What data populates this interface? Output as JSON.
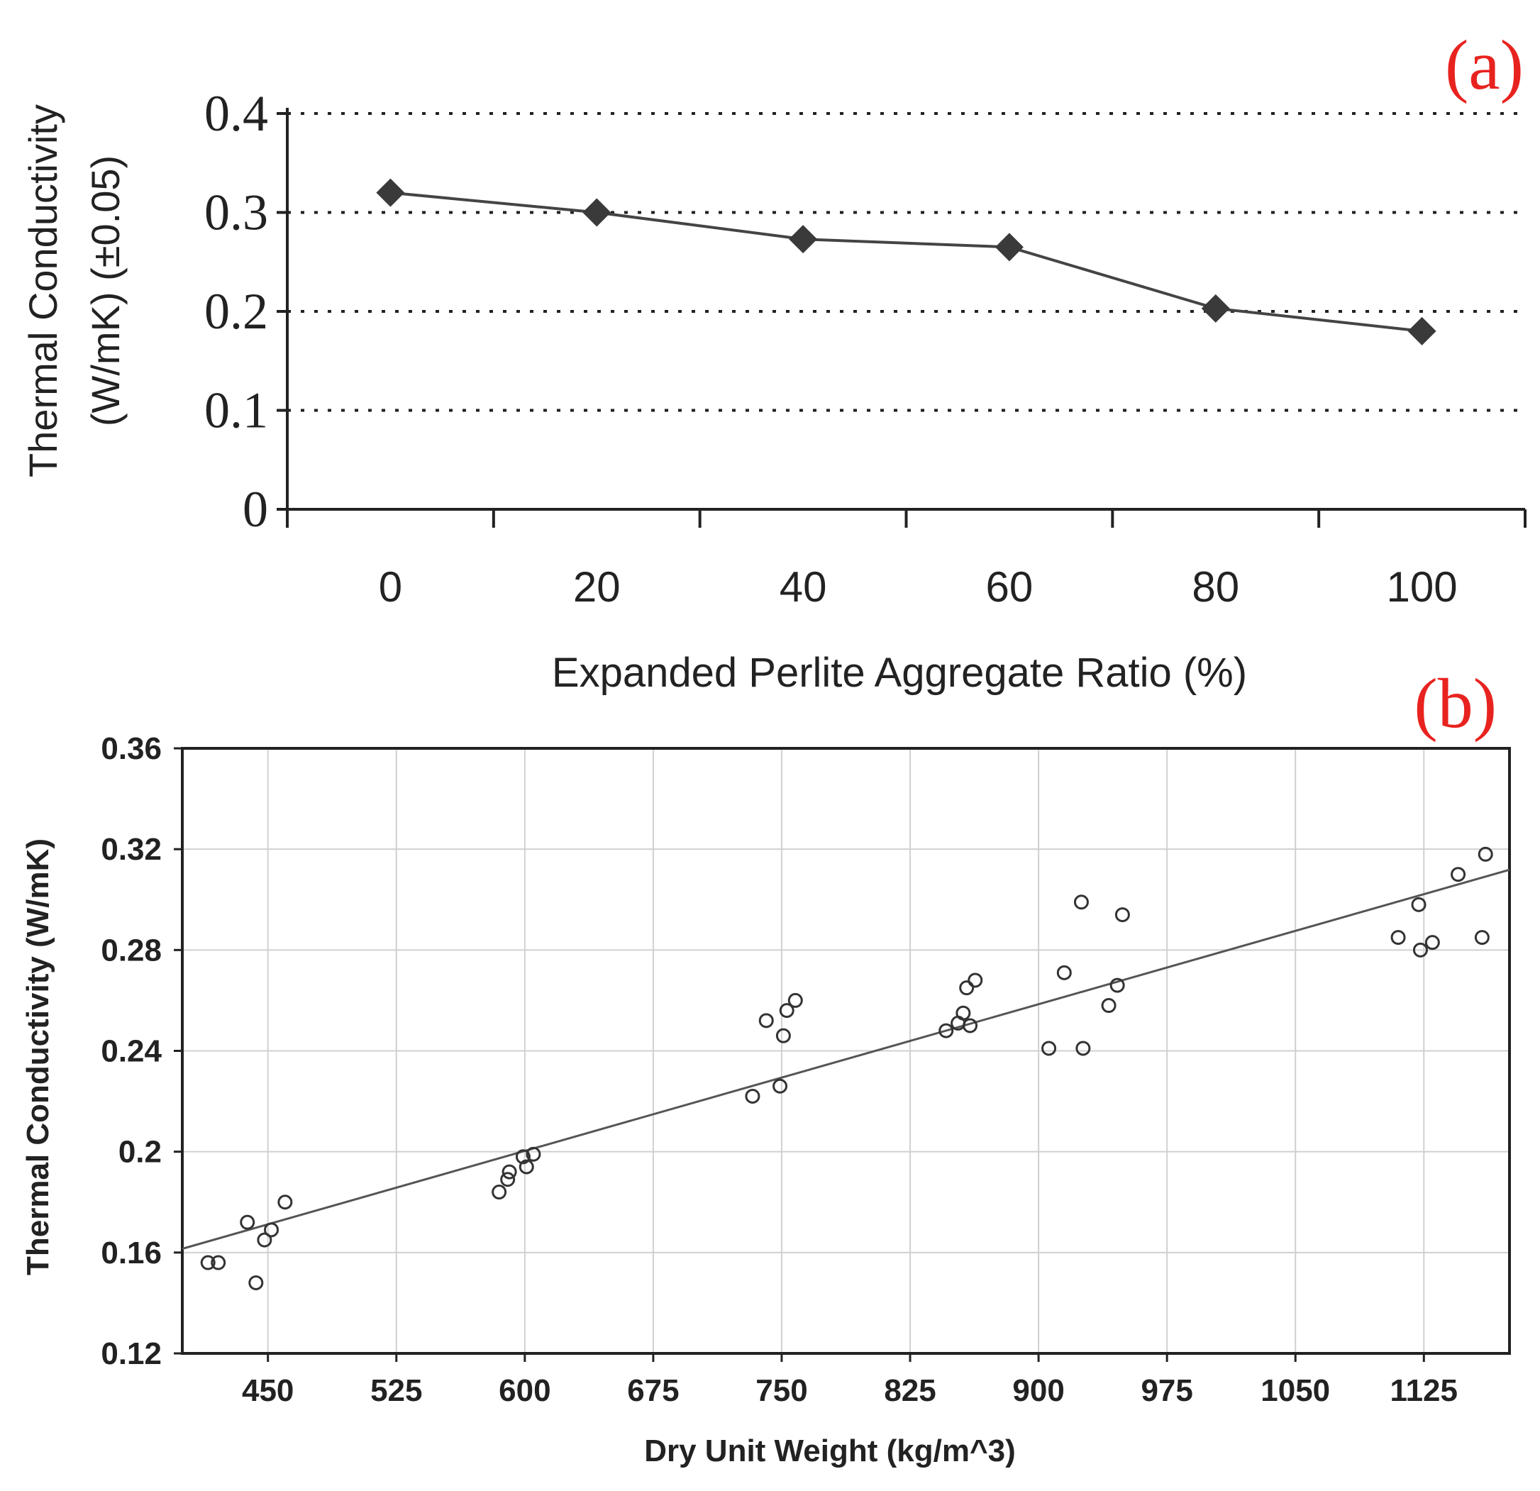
{
  "colors": {
    "panel_label": "#e8231f",
    "line_a": "#444444",
    "marker_a": "#3a3a3a",
    "axis": "#222222",
    "grid_b": "#d0d0d0",
    "fit_b": "#555555",
    "marker_b": "#333333"
  },
  "chart_data": [
    {
      "type": "line",
      "panel_label": "(a)",
      "title": "",
      "xlabel": "Expanded Perlite Aggregate Ratio (%)",
      "ylabel_line1": "Thermal Conductivity",
      "ylabel_line2": "(W/mK) (±0.05)",
      "x": [
        0,
        20,
        40,
        60,
        80,
        100
      ],
      "y": [
        0.32,
        0.3,
        0.273,
        0.265,
        0.203,
        0.18
      ],
      "xlim": [
        -10,
        110
      ],
      "ylim": [
        0,
        0.4
      ],
      "xticks": [
        "0",
        "20",
        "40",
        "60",
        "80",
        "100"
      ],
      "yticks": [
        "0",
        "0.1",
        "0.2",
        "0.3",
        "0.4"
      ],
      "grid": "horizontal dotted",
      "marker": "diamond"
    },
    {
      "type": "scatter",
      "panel_label": "(b)",
      "title": "",
      "xlabel": "Dry Unit Weight (kg/m^3)",
      "ylabel": "Thermal Conductivity (W/mK)",
      "xlim": [
        400,
        1175
      ],
      "ylim": [
        0.12,
        0.36
      ],
      "xticks": [
        "450",
        "525",
        "600",
        "675",
        "750",
        "825",
        "900",
        "975",
        "1050",
        "1125"
      ],
      "yticks": [
        "0.12",
        "0.16",
        "0.2",
        "0.24",
        "0.28",
        "0.32",
        "0.36"
      ],
      "grid": "both",
      "marker": "open circle",
      "points": [
        [
          415,
          0.156
        ],
        [
          421,
          0.156
        ],
        [
          438,
          0.172
        ],
        [
          443,
          0.148
        ],
        [
          448,
          0.165
        ],
        [
          452,
          0.169
        ],
        [
          460,
          0.18
        ],
        [
          585,
          0.184
        ],
        [
          590,
          0.189
        ],
        [
          591,
          0.192
        ],
        [
          599,
          0.198
        ],
        [
          601,
          0.194
        ],
        [
          605,
          0.199
        ],
        [
          733,
          0.222
        ],
        [
          741,
          0.252
        ],
        [
          749,
          0.226
        ],
        [
          751,
          0.246
        ],
        [
          753,
          0.256
        ],
        [
          758,
          0.26
        ],
        [
          846,
          0.248
        ],
        [
          853,
          0.251
        ],
        [
          856,
          0.255
        ],
        [
          858,
          0.265
        ],
        [
          860,
          0.25
        ],
        [
          863,
          0.268
        ],
        [
          906,
          0.241
        ],
        [
          915,
          0.271
        ],
        [
          925,
          0.299
        ],
        [
          926,
          0.241
        ],
        [
          941,
          0.258
        ],
        [
          946,
          0.266
        ],
        [
          949,
          0.294
        ],
        [
          1110,
          0.285
        ],
        [
          1122,
          0.298
        ],
        [
          1123,
          0.28
        ],
        [
          1130,
          0.283
        ],
        [
          1145,
          0.31
        ],
        [
          1159,
          0.285
        ],
        [
          1161,
          0.318
        ]
      ],
      "fit_line": {
        "slope": 0.000194,
        "intercept": 0.0839,
        "xrange": [
          400,
          1175
        ]
      }
    }
  ]
}
